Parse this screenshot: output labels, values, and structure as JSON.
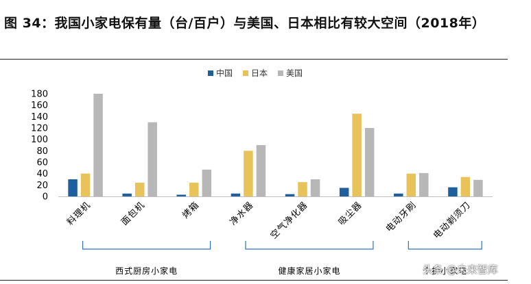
{
  "figure": {
    "title": "图 34：我国小家电保有量（台/百户）与美国、日本相比有较大空间（2018年）"
  },
  "watermark": "头条 @未来智库",
  "chart_data": {
    "type": "bar",
    "title": "",
    "xlabel": "",
    "ylabel": "",
    "ylim": [
      0,
      180
    ],
    "yticks": [
      0,
      20,
      40,
      60,
      80,
      100,
      120,
      140,
      160,
      180
    ],
    "grid": false,
    "legend_position": "top-center",
    "categories": [
      "料理机",
      "面包机",
      "烤箱",
      "净水器",
      "空气净化器",
      "吸尘器",
      "电动牙刷",
      "电动剃须刀"
    ],
    "series": [
      {
        "name": "中国",
        "color": "#1f5f9e",
        "values": [
          30,
          5,
          3,
          5,
          4,
          15,
          5,
          16
        ]
      },
      {
        "name": "日本",
        "color": "#e8c35a",
        "values": [
          40,
          24,
          24,
          80,
          25,
          145,
          40,
          34
        ]
      },
      {
        "name": "美国",
        "color": "#b7b7b7",
        "values": [
          180,
          130,
          47,
          90,
          30,
          120,
          41,
          29
        ]
      }
    ],
    "groups": [
      {
        "label": "西式厨房小家电",
        "from": 0,
        "to": 2
      },
      {
        "label": "健康家居小家电",
        "from": 3,
        "to": 5
      },
      {
        "label": "个护小家电",
        "from": 6,
        "to": 7
      }
    ]
  }
}
